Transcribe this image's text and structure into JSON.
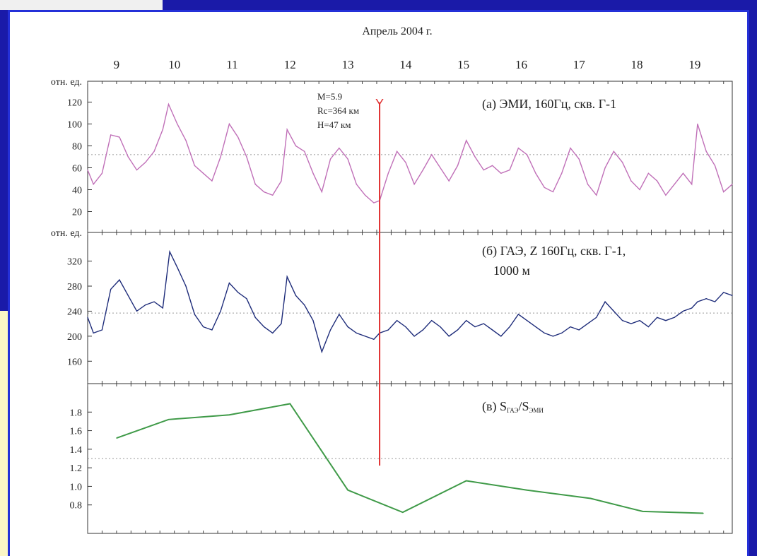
{
  "chart_data": {
    "type": "line",
    "x_title": "Апрель 2004 г.",
    "x_days": [
      "9",
      "10",
      "11",
      "12",
      "13",
      "14",
      "15",
      "16",
      "17",
      "18",
      "19"
    ],
    "xlim": [
      8.5,
      19.65
    ],
    "event": {
      "day": 13.55,
      "marker": "Y",
      "color": "#e03030",
      "lines": [
        "M=5.9",
        "Rc=364 км",
        "H=47 км"
      ]
    },
    "panels": [
      {
        "id": "a",
        "ylabel": "отн. ед.",
        "title": "(а) ЭМИ, 160Гц, скв. Г-1",
        "yticks": [
          "120",
          "100",
          "80",
          "60",
          "40",
          "20"
        ],
        "ylim": [
          10,
          130
        ],
        "ref_line": 72,
        "color": "#c070b8",
        "series": [
          {
            "x": 8.5,
            "y": 58
          },
          {
            "x": 8.6,
            "y": 45
          },
          {
            "x": 8.75,
            "y": 55
          },
          {
            "x": 8.9,
            "y": 90
          },
          {
            "x": 9.05,
            "y": 88
          },
          {
            "x": 9.2,
            "y": 70
          },
          {
            "x": 9.35,
            "y": 58
          },
          {
            "x": 9.5,
            "y": 65
          },
          {
            "x": 9.65,
            "y": 75
          },
          {
            "x": 9.8,
            "y": 95
          },
          {
            "x": 9.9,
            "y": 118
          },
          {
            "x": 10.05,
            "y": 100
          },
          {
            "x": 10.2,
            "y": 85
          },
          {
            "x": 10.35,
            "y": 62
          },
          {
            "x": 10.5,
            "y": 55
          },
          {
            "x": 10.65,
            "y": 48
          },
          {
            "x": 10.8,
            "y": 70
          },
          {
            "x": 10.95,
            "y": 100
          },
          {
            "x": 11.1,
            "y": 88
          },
          {
            "x": 11.25,
            "y": 70
          },
          {
            "x": 11.4,
            "y": 45
          },
          {
            "x": 11.55,
            "y": 38
          },
          {
            "x": 11.7,
            "y": 35
          },
          {
            "x": 11.85,
            "y": 48
          },
          {
            "x": 11.95,
            "y": 95
          },
          {
            "x": 12.1,
            "y": 80
          },
          {
            "x": 12.25,
            "y": 75
          },
          {
            "x": 12.4,
            "y": 55
          },
          {
            "x": 12.55,
            "y": 38
          },
          {
            "x": 12.7,
            "y": 68
          },
          {
            "x": 12.85,
            "y": 78
          },
          {
            "x": 13.0,
            "y": 68
          },
          {
            "x": 13.15,
            "y": 45
          },
          {
            "x": 13.3,
            "y": 35
          },
          {
            "x": 13.45,
            "y": 28
          },
          {
            "x": 13.55,
            "y": 30
          },
          {
            "x": 13.7,
            "y": 55
          },
          {
            "x": 13.85,
            "y": 75
          },
          {
            "x": 14.0,
            "y": 65
          },
          {
            "x": 14.15,
            "y": 45
          },
          {
            "x": 14.3,
            "y": 58
          },
          {
            "x": 14.45,
            "y": 72
          },
          {
            "x": 14.6,
            "y": 60
          },
          {
            "x": 14.75,
            "y": 48
          },
          {
            "x": 14.9,
            "y": 62
          },
          {
            "x": 15.05,
            "y": 85
          },
          {
            "x": 15.2,
            "y": 70
          },
          {
            "x": 15.35,
            "y": 58
          },
          {
            "x": 15.5,
            "y": 62
          },
          {
            "x": 15.65,
            "y": 55
          },
          {
            "x": 15.8,
            "y": 58
          },
          {
            "x": 15.95,
            "y": 78
          },
          {
            "x": 16.1,
            "y": 72
          },
          {
            "x": 16.25,
            "y": 55
          },
          {
            "x": 16.4,
            "y": 42
          },
          {
            "x": 16.55,
            "y": 38
          },
          {
            "x": 16.7,
            "y": 55
          },
          {
            "x": 16.85,
            "y": 78
          },
          {
            "x": 17.0,
            "y": 68
          },
          {
            "x": 17.15,
            "y": 45
          },
          {
            "x": 17.3,
            "y": 35
          },
          {
            "x": 17.45,
            "y": 60
          },
          {
            "x": 17.6,
            "y": 75
          },
          {
            "x": 17.75,
            "y": 65
          },
          {
            "x": 17.9,
            "y": 48
          },
          {
            "x": 18.05,
            "y": 40
          },
          {
            "x": 18.2,
            "y": 55
          },
          {
            "x": 18.35,
            "y": 48
          },
          {
            "x": 18.5,
            "y": 35
          },
          {
            "x": 18.65,
            "y": 45
          },
          {
            "x": 18.8,
            "y": 55
          },
          {
            "x": 18.95,
            "y": 45
          },
          {
            "x": 19.05,
            "y": 100
          },
          {
            "x": 19.2,
            "y": 75
          },
          {
            "x": 19.35,
            "y": 62
          },
          {
            "x": 19.5,
            "y": 38
          },
          {
            "x": 19.65,
            "y": 45
          }
        ]
      },
      {
        "id": "b",
        "ylabel": "отн. ед.",
        "title": [
          "(б) ГАЭ, Z 160Гц, скв. Г-1,",
          "1000 м"
        ],
        "yticks": [
          "320",
          "280",
          "240",
          "200",
          "160"
        ],
        "ylim": [
          140,
          350
        ],
        "ref_line": 237,
        "color": "#1e2c7a",
        "series": [
          {
            "x": 8.5,
            "y": 230
          },
          {
            "x": 8.6,
            "y": 205
          },
          {
            "x": 8.75,
            "y": 210
          },
          {
            "x": 8.9,
            "y": 275
          },
          {
            "x": 9.05,
            "y": 290
          },
          {
            "x": 9.2,
            "y": 265
          },
          {
            "x": 9.35,
            "y": 240
          },
          {
            "x": 9.5,
            "y": 250
          },
          {
            "x": 9.65,
            "y": 255
          },
          {
            "x": 9.8,
            "y": 245
          },
          {
            "x": 9.92,
            "y": 335
          },
          {
            "x": 10.05,
            "y": 310
          },
          {
            "x": 10.2,
            "y": 280
          },
          {
            "x": 10.35,
            "y": 235
          },
          {
            "x": 10.5,
            "y": 215
          },
          {
            "x": 10.65,
            "y": 210
          },
          {
            "x": 10.8,
            "y": 240
          },
          {
            "x": 10.95,
            "y": 285
          },
          {
            "x": 11.1,
            "y": 270
          },
          {
            "x": 11.25,
            "y": 260
          },
          {
            "x": 11.4,
            "y": 230
          },
          {
            "x": 11.55,
            "y": 215
          },
          {
            "x": 11.7,
            "y": 205
          },
          {
            "x": 11.85,
            "y": 220
          },
          {
            "x": 11.95,
            "y": 295
          },
          {
            "x": 12.1,
            "y": 265
          },
          {
            "x": 12.25,
            "y": 250
          },
          {
            "x": 12.4,
            "y": 225
          },
          {
            "x": 12.55,
            "y": 175
          },
          {
            "x": 12.7,
            "y": 210
          },
          {
            "x": 12.85,
            "y": 235
          },
          {
            "x": 13.0,
            "y": 215
          },
          {
            "x": 13.15,
            "y": 205
          },
          {
            "x": 13.3,
            "y": 200
          },
          {
            "x": 13.45,
            "y": 195
          },
          {
            "x": 13.55,
            "y": 205
          },
          {
            "x": 13.7,
            "y": 210
          },
          {
            "x": 13.85,
            "y": 225
          },
          {
            "x": 14.0,
            "y": 215
          },
          {
            "x": 14.15,
            "y": 200
          },
          {
            "x": 14.3,
            "y": 210
          },
          {
            "x": 14.45,
            "y": 225
          },
          {
            "x": 14.6,
            "y": 215
          },
          {
            "x": 14.75,
            "y": 200
          },
          {
            "x": 14.9,
            "y": 210
          },
          {
            "x": 15.05,
            "y": 225
          },
          {
            "x": 15.2,
            "y": 215
          },
          {
            "x": 15.35,
            "y": 220
          },
          {
            "x": 15.5,
            "y": 210
          },
          {
            "x": 15.65,
            "y": 200
          },
          {
            "x": 15.8,
            "y": 215
          },
          {
            "x": 15.95,
            "y": 235
          },
          {
            "x": 16.1,
            "y": 225
          },
          {
            "x": 16.25,
            "y": 215
          },
          {
            "x": 16.4,
            "y": 205
          },
          {
            "x": 16.55,
            "y": 200
          },
          {
            "x": 16.7,
            "y": 205
          },
          {
            "x": 16.85,
            "y": 215
          },
          {
            "x": 17.0,
            "y": 210
          },
          {
            "x": 17.15,
            "y": 220
          },
          {
            "x": 17.3,
            "y": 230
          },
          {
            "x": 17.45,
            "y": 255
          },
          {
            "x": 17.6,
            "y": 240
          },
          {
            "x": 17.75,
            "y": 225
          },
          {
            "x": 17.9,
            "y": 220
          },
          {
            "x": 18.05,
            "y": 225
          },
          {
            "x": 18.2,
            "y": 215
          },
          {
            "x": 18.35,
            "y": 230
          },
          {
            "x": 18.5,
            "y": 225
          },
          {
            "x": 18.65,
            "y": 230
          },
          {
            "x": 18.8,
            "y": 240
          },
          {
            "x": 18.95,
            "y": 245
          },
          {
            "x": 19.05,
            "y": 255
          },
          {
            "x": 19.2,
            "y": 260
          },
          {
            "x": 19.35,
            "y": 255
          },
          {
            "x": 19.5,
            "y": 270
          },
          {
            "x": 19.65,
            "y": 265
          }
        ]
      },
      {
        "id": "c",
        "title_main": "(в) S",
        "title_sub1": "ГАЭ",
        "title_mid": "/S",
        "title_sub2": "ЭМИ",
        "yticks": [
          "1.8",
          "1.6",
          "1.4",
          "1.2",
          "1.0",
          "0.8"
        ],
        "ylim": [
          0.6,
          2.0
        ],
        "ref_line": 1.3,
        "color": "#3f9a48",
        "series": [
          {
            "x": 9.0,
            "y": 1.52
          },
          {
            "x": 9.9,
            "y": 1.72
          },
          {
            "x": 10.95,
            "y": 1.77
          },
          {
            "x": 12.0,
            "y": 1.89
          },
          {
            "x": 13.0,
            "y": 0.96
          },
          {
            "x": 13.95,
            "y": 0.72
          },
          {
            "x": 15.05,
            "y": 1.06
          },
          {
            "x": 16.1,
            "y": 0.96
          },
          {
            "x": 17.2,
            "y": 0.87
          },
          {
            "x": 18.1,
            "y": 0.73
          },
          {
            "x": 19.15,
            "y": 0.71
          }
        ]
      }
    ]
  }
}
